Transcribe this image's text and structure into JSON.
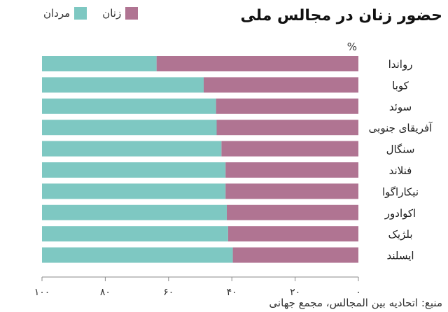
{
  "chart_data": {
    "type": "bar",
    "stacked": true,
    "orientation": "horizontal",
    "title": "حضور زنان در مجالس ملی",
    "unit_label": "%",
    "categories": [
      "رواندا",
      "کوبا",
      "سوئد",
      "آفریقای جنوبی",
      "سنگال",
      "فنلاند",
      "نیکاراگوا",
      "اکوادور",
      "بلژیک",
      "ایسلند"
    ],
    "series": [
      {
        "name": "زنان",
        "color": "#b07492",
        "values": [
          63.8,
          48.9,
          45.0,
          44.8,
          43.3,
          42.0,
          42.0,
          41.6,
          41.2,
          39.7
        ]
      },
      {
        "name": "مردان",
        "color": "#7ec8c2",
        "values": [
          36.2,
          51.1,
          55.0,
          55.2,
          56.7,
          58.0,
          58.0,
          58.4,
          58.8,
          60.3
        ]
      }
    ],
    "x_ticks": [
      "۰",
      "۲۰",
      "۴۰",
      "۶۰",
      "۸۰",
      "۱۰۰"
    ],
    "x_tick_values": [
      0,
      20,
      40,
      60,
      80,
      100
    ],
    "xlim": [
      0,
      100
    ],
    "x_direction": "right-to-left",
    "grid": false,
    "legend_position": "top-left",
    "source": "منبع: اتحادیه بین المجالس، مجمع جهانی"
  }
}
